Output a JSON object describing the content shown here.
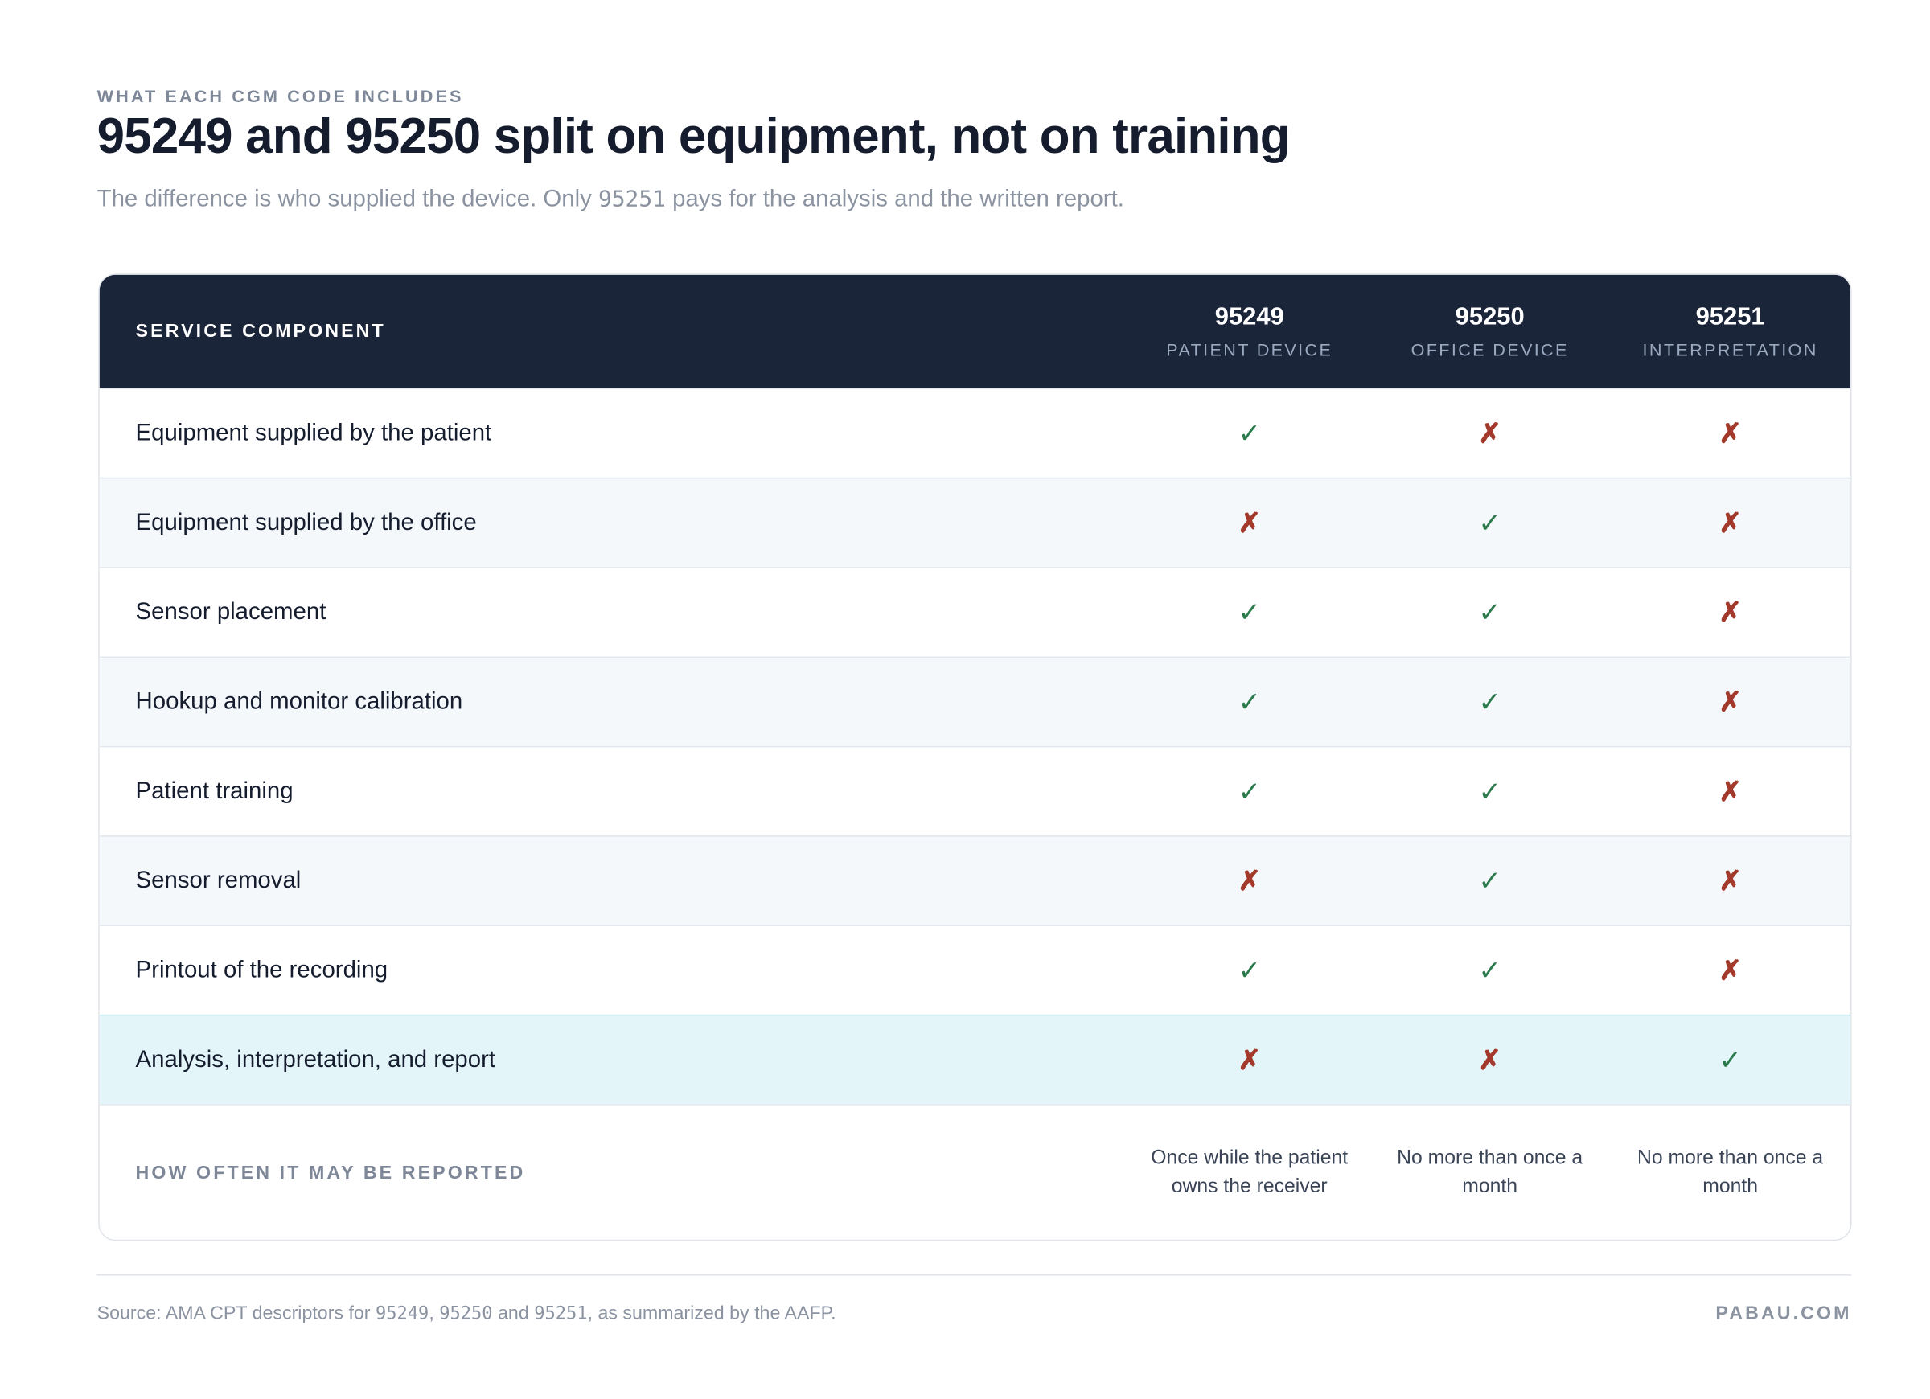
{
  "header": {
    "eyebrow": "WHAT EACH CGM CODE INCLUDES",
    "title": "95249 and 95250 split on equipment, not on training",
    "subtitle": [
      "The difference is who supplied the device. Only ",
      "95251",
      " pays for the analysis and the written report."
    ]
  },
  "table": {
    "columns": [
      {
        "label": "SERVICE COMPONENT"
      },
      {
        "code": "95249",
        "label": "PATIENT DEVICE"
      },
      {
        "code": "95250",
        "label": "OFFICE DEVICE"
      },
      {
        "code": "95251",
        "label": "INTERPRETATION"
      }
    ],
    "rows": [
      {
        "label": "Equipment supplied by the patient",
        "cells": [
          "✓",
          "✗",
          "✗"
        ]
      },
      {
        "label": "Equipment supplied by the office",
        "cells": [
          "✗",
          "✓",
          "✗"
        ]
      },
      {
        "label": "Sensor placement",
        "cells": [
          "✓",
          "✓",
          "✗"
        ]
      },
      {
        "label": "Hookup and monitor calibration",
        "cells": [
          "✓",
          "✓",
          "✗"
        ]
      },
      {
        "label": "Patient training",
        "cells": [
          "✓",
          "✓",
          "✗"
        ]
      },
      {
        "label": "Sensor removal",
        "cells": [
          "✗",
          "✓",
          "✗"
        ]
      },
      {
        "label": "Printout of the recording",
        "cells": [
          "✓",
          "✓",
          "✗"
        ]
      },
      {
        "label": "Analysis, interpretation, and report",
        "cells": [
          "✗",
          "✗",
          "✓"
        ]
      }
    ],
    "footer_row": {
      "label": "HOW OFTEN IT MAY BE REPORTED",
      "cells": [
        "Once while the patient owns the receiver",
        "No more than once a month",
        "No more than once a month"
      ]
    }
  },
  "footer": {
    "source": [
      "Source: AMA CPT descriptors for ",
      "95249",
      ", ",
      "95250",
      " and ",
      "95251",
      ", as summarized by the AAFP."
    ],
    "brand": "PABAU.COM"
  }
}
